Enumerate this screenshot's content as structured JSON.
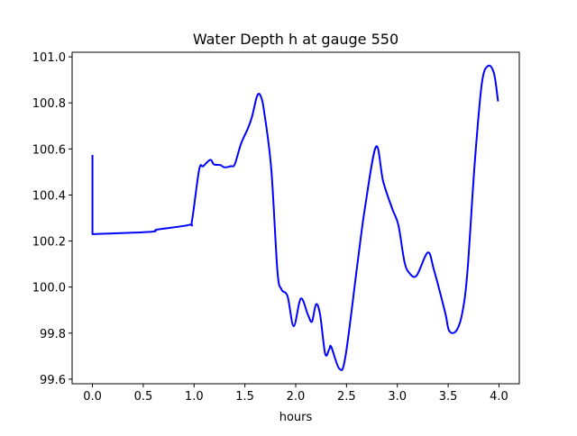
{
  "chart_data": {
    "type": "line",
    "title": "Water Depth h at gauge 550",
    "xlabel": "hours",
    "ylabel": "",
    "xlim": [
      -0.2,
      4.2
    ],
    "ylim": [
      99.58,
      101.02
    ],
    "xticks": [
      0.0,
      0.5,
      1.0,
      1.5,
      2.0,
      2.5,
      3.0,
      3.5,
      4.0
    ],
    "xtick_labels": [
      "0.0",
      "0.5",
      "1.0",
      "1.5",
      "2.0",
      "2.5",
      "3.0",
      "3.5",
      "4.0"
    ],
    "yticks": [
      99.6,
      99.8,
      100.0,
      100.2,
      100.4,
      100.6,
      100.8,
      101.0
    ],
    "ytick_labels": [
      "99.6",
      "99.8",
      "100.0",
      "100.2",
      "100.4",
      "100.6",
      "100.8",
      "101.0"
    ],
    "grid": false,
    "series": [
      {
        "name": "h",
        "color": "#0000ff",
        "x": [
          0.0,
          0.0,
          0.57,
          0.64,
          0.95,
          0.98,
          1.05,
          1.09,
          1.16,
          1.195,
          1.257,
          1.3,
          1.36,
          1.4,
          1.46,
          1.53,
          1.57,
          1.62,
          1.655,
          1.69,
          1.76,
          1.82,
          1.86,
          1.92,
          1.98,
          2.05,
          2.12,
          2.16,
          2.2,
          2.24,
          2.29,
          2.33,
          2.35,
          2.43,
          2.49,
          2.61,
          2.68,
          2.79,
          2.86,
          2.95,
          3.01,
          3.07,
          3.12,
          3.19,
          3.3,
          3.36,
          3.47,
          3.51,
          3.58,
          3.64,
          3.69,
          3.76,
          3.83,
          3.89,
          3.95,
          3.99
        ],
        "y": [
          100.57,
          100.23,
          100.24,
          100.25,
          100.27,
          100.29,
          100.51,
          100.525,
          100.553,
          100.533,
          100.53,
          100.52,
          100.525,
          100.533,
          100.62,
          100.69,
          100.74,
          100.83,
          100.83,
          100.76,
          100.51,
          100.07,
          99.99,
          99.96,
          99.83,
          99.95,
          99.88,
          99.85,
          99.925,
          99.88,
          99.71,
          99.73,
          99.74,
          99.645,
          99.7,
          100.11,
          100.34,
          100.61,
          100.46,
          100.34,
          100.27,
          100.11,
          100.06,
          100.05,
          100.15,
          100.075,
          99.89,
          99.81,
          99.81,
          99.89,
          100.07,
          100.53,
          100.88,
          100.96,
          100.93,
          100.81
        ]
      }
    ]
  }
}
